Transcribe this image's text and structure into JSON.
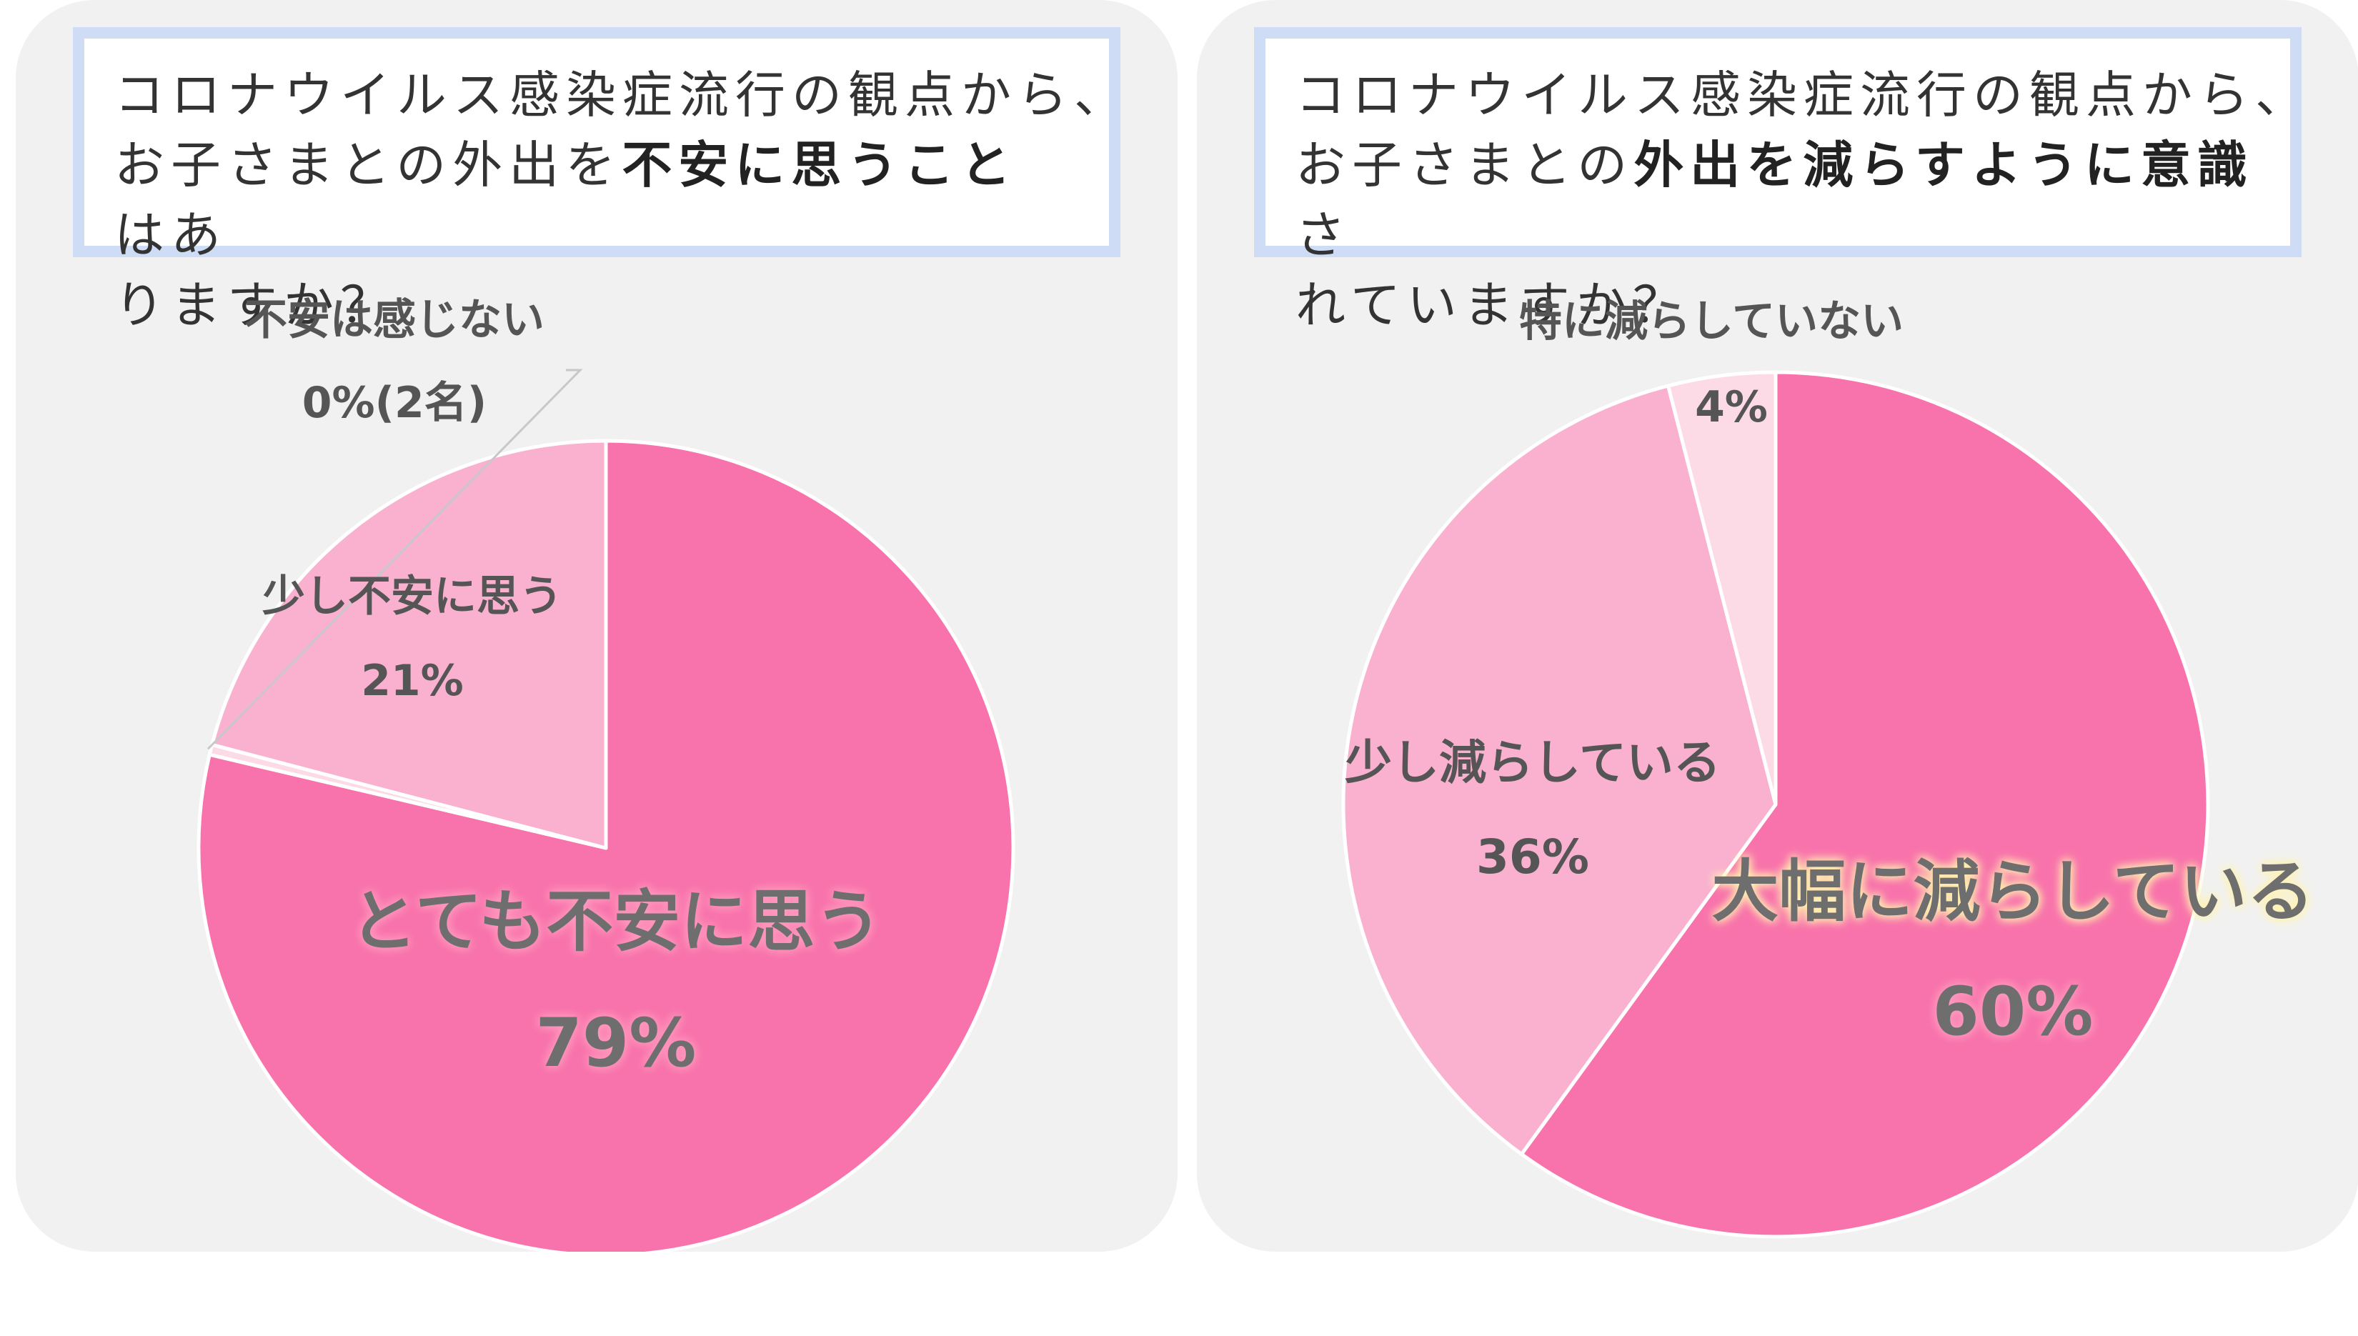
{
  "colors": {
    "panel_bg": "#f1f1f1",
    "question_border": "#cfdcf5",
    "label_text": "#555555",
    "glow": "#ff9bbf"
  },
  "chart_data": [
    {
      "type": "pie",
      "question": {
        "line1": "コロナウイルス感染症流行の観点から、",
        "line2_a": "お子さまとの外出を",
        "line2_em": "不安に思うこと",
        "line2_b": "はあ",
        "line3": "りますか？"
      },
      "slices": [
        {
          "label": "とても不安に思う",
          "value": 79,
          "value_label": "79%",
          "color": "#f873ab"
        },
        {
          "label": "不安は感じない",
          "value": 0.4,
          "value_label": "0%(2名)",
          "color": "#fcdae6"
        },
        {
          "label": "少し不安に思う",
          "value": 21,
          "value_label": "21%",
          "color": "#f9b1cf"
        }
      ]
    },
    {
      "type": "pie",
      "question": {
        "line1": "コロナウイルス感染症流行の観点から、",
        "line2_a": "お子さまとの",
        "line2_em": "外出を減らすように意識",
        "line2_b": "さ",
        "line3": "れていますか？"
      },
      "slices": [
        {
          "label": "大幅に減らしている",
          "value": 60,
          "value_label": "60%",
          "color": "#f873ab"
        },
        {
          "label": "少し減らしている",
          "value": 36,
          "value_label": "36%",
          "color": "#f9b1cf"
        },
        {
          "label": "特に減らしていない",
          "value": 4,
          "value_label": "4%",
          "color": "#fcdae6"
        }
      ]
    }
  ]
}
